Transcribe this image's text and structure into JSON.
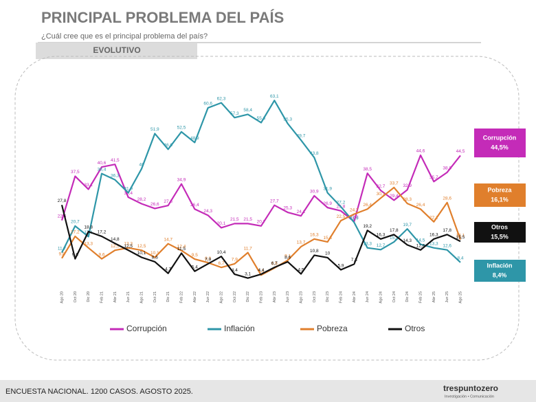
{
  "header": {
    "title": "PRINCIPAL PROBLEMA DEL PAÍS",
    "subtitle": "¿Cuál cree que es el principal problema del país?",
    "tab": "EVOLUTIVO"
  },
  "footer": {
    "text": "ENCUESTA NACIONAL. 1200 CASOS. AGOSTO 2025.",
    "brand": "trespuntozero",
    "brand_tagline": "Investigación • Comunicación"
  },
  "chart_data": {
    "type": "line",
    "categories": [
      "Ago 20",
      "Oct 20",
      "Dic 20",
      "Feb 21",
      "Abr 21",
      "Jun 21",
      "Ago 21",
      "Oct 21",
      "Dic 21",
      "Feb 22",
      "Abr 22",
      "Jun 22",
      "Ago 22",
      "Oct 22",
      "Dic 22",
      "Feb 23",
      "Abr 23",
      "Jun 23",
      "Ago 23",
      "Oct 23",
      "Dic 23",
      "Feb 24",
      "Abr 24",
      "Jun 24",
      "Ago 24",
      "Oct 24",
      "Dic 24",
      "Feb 25",
      "Abr 25",
      "Jun 25",
      "Ago 25"
    ],
    "ylim": [
      0,
      65
    ],
    "legend": "bottom",
    "series": [
      {
        "name": "Corrupción",
        "color": "#c42bb8",
        "end_label": "44,5%",
        "values": [
          22.6,
          37.5,
          33.1,
          40.6,
          41.5,
          30.4,
          28.2,
          26.6,
          27.6,
          34.9,
          26.4,
          24.3,
          20.1,
          21.5,
          21.5,
          20.7,
          27.7,
          25.3,
          24.1,
          30.9,
          26.9,
          25.8,
          22.2,
          38.5,
          32.7,
          29.4,
          32.9,
          44.6,
          35.7,
          38.8,
          44.5
        ],
        "value_labels": [
          "22,6",
          "37,5",
          "33,1",
          "40,6",
          "41,5",
          "30,4",
          "28,2",
          "26,6",
          "27,6",
          "34,9",
          "26,4",
          "24,3",
          "20,1",
          "21,5",
          "21,5",
          "20,7",
          "27,7",
          "25,3",
          "24,1",
          "30,9",
          "26,9",
          "25,8",
          "22,2",
          "38,5",
          "32,7",
          "29,4",
          "32,9",
          "44,6",
          "35,7",
          "38,8",
          "44,5"
        ]
      },
      {
        "name": "Inflación",
        "color": "#2e96a8",
        "end_label": "8,4%",
        "values": [
          11.7,
          20.7,
          17.1,
          38.4,
          36.3,
          31.9,
          40,
          51.9,
          46.6,
          52.5,
          48.9,
          60.6,
          62.3,
          57.3,
          58.4,
          55.6,
          63.1,
          55.3,
          49.7,
          43.8,
          31.9,
          27.2,
          21.9,
          13.3,
          12.7,
          15.3,
          19.7,
          14.5,
          13.3,
          12.6,
          8.4
        ],
        "value_labels": [
          "11,7",
          "20,7",
          "17,1",
          "38,4",
          "36,3",
          "31,9",
          "40",
          "51,9",
          "46,6",
          "52,5",
          "48,9",
          "60,6",
          "62,3",
          "57,3",
          "58,4",
          "55,6",
          "63,1",
          "55,3",
          "49,7",
          "43,8",
          "31,9",
          "27,2",
          "21,9",
          "13,3",
          "12,7",
          "15,3",
          "19,7",
          "14,5",
          "13,3",
          "12,6",
          "8,4"
        ]
      },
      {
        "name": "Pobreza",
        "color": "#e07f2c",
        "end_label": "16,1%",
        "values": [
          9.8,
          17.2,
          13.3,
          9.6,
          12.5,
          13.3,
          12.5,
          10.1,
          14.7,
          12.4,
          9.5,
          8.3,
          6.7,
          7.9,
          11.7,
          4.1,
          6.5,
          9.1,
          13.7,
          16.3,
          15.3,
          22.5,
          24.7,
          26.4,
          30.1,
          33.7,
          28.3,
          26.4,
          22.1,
          28.6,
          16.1
        ],
        "value_labels": [
          "9,8",
          "17,2",
          "13,3",
          "9,6",
          "12,5",
          "13,3",
          "12,5",
          "10,1",
          "14,7",
          "12,4",
          "9,5",
          "8,3",
          "6,7",
          "7,9",
          "11,7",
          "4,1",
          "6,5",
          "9,1",
          "13,7",
          "16,3",
          "15,3",
          "22,5",
          "24,7",
          "26,4",
          "30,1",
          "33,7",
          "28,3",
          "26,4",
          "22,1",
          "28,6",
          "16,1"
        ]
      },
      {
        "name": "Otros",
        "color": "#111111",
        "end_label": "15,5%",
        "values": [
          27.8,
          9.6,
          18.8,
          17.2,
          14.8,
          12.5,
          10.1,
          8.6,
          4.7,
          11.5,
          5.4,
          7.9,
          10.4,
          4.4,
          3.1,
          4.4,
          6.7,
          8.6,
          4.5,
          10.8,
          10,
          5.9,
          7.8,
          19.2,
          16.3,
          17.8,
          14.3,
          12.6,
          16.3,
          17.8,
          15.5
        ],
        "value_labels": [
          "27,8",
          "9,6",
          "18,8",
          "17,2",
          "14,8",
          "12,5",
          "10,1",
          "8,6",
          "4,7",
          "11,5",
          "5,4",
          "7,9",
          "10,4",
          "4,4",
          "3,1",
          "4,4",
          "6,7",
          "8,6",
          "4,5",
          "10,8",
          "10",
          "5,9",
          "7,8",
          "19,2",
          "16,3",
          "17,8",
          "14,3",
          "12,6",
          "16,3",
          "17,8",
          "15,5"
        ]
      }
    ]
  }
}
